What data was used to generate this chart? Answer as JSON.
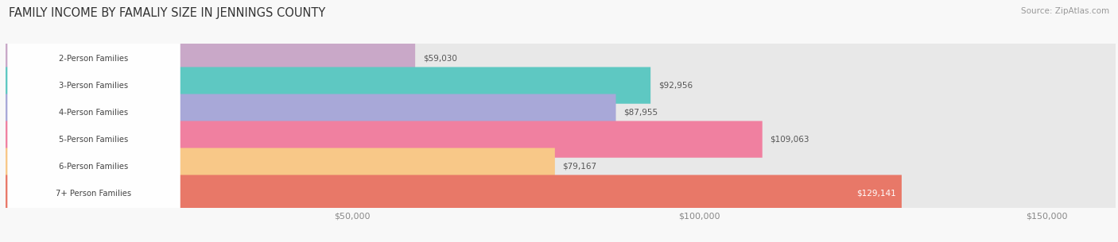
{
  "title": "FAMILY INCOME BY FAMALIY SIZE IN JENNINGS COUNTY",
  "source": "Source: ZipAtlas.com",
  "categories": [
    "2-Person Families",
    "3-Person Families",
    "4-Person Families",
    "5-Person Families",
    "6-Person Families",
    "7+ Person Families"
  ],
  "values": [
    59030,
    92956,
    87955,
    109063,
    79167,
    129141
  ],
  "bar_colors": [
    "#c9a8c8",
    "#5ec8c2",
    "#a8a8d8",
    "#f080a0",
    "#f8c888",
    "#e87868"
  ],
  "label_colors": [
    "#555555",
    "#555555",
    "#555555",
    "#555555",
    "#555555",
    "#ffffff"
  ],
  "xmax": 160000,
  "xtick_positions": [
    50000,
    100000,
    150000
  ],
  "xtick_labels": [
    "$50,000",
    "$100,000",
    "$150,000"
  ],
  "bg_color": "#f8f8f8",
  "bar_bg_color": "#e8e8e8",
  "title_fontsize": 10.5,
  "bar_height": 0.68,
  "figsize": [
    14.06,
    3.05
  ],
  "bar_gap": 1.0
}
